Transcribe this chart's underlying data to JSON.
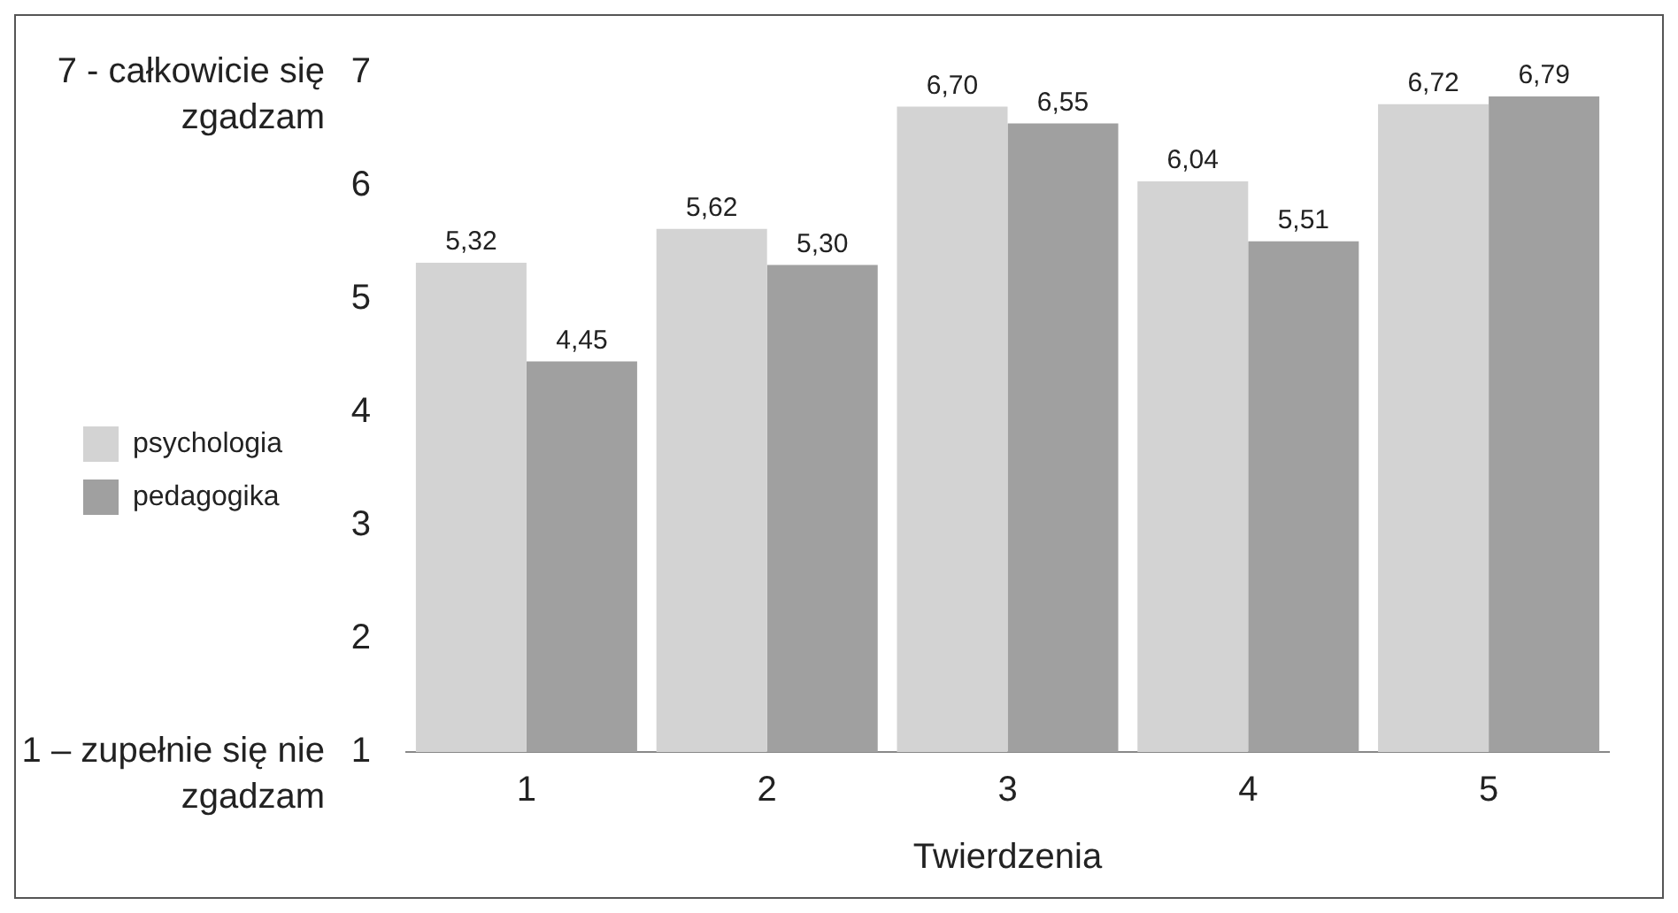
{
  "chart_data": {
    "type": "bar",
    "xlabel": "Twierdzenia",
    "categories": [
      "1",
      "2",
      "3",
      "4",
      "5"
    ],
    "series": [
      {
        "name": "psychologia",
        "color": "#d3d3d3",
        "values": [
          5.32,
          5.62,
          6.7,
          6.04,
          6.72
        ],
        "value_labels": [
          "5,32",
          "5,62",
          "6,70",
          "6,04",
          "6,72"
        ]
      },
      {
        "name": "pedagogika",
        "color": "#a0a0a0",
        "values": [
          4.45,
          5.3,
          6.55,
          5.51,
          6.79
        ],
        "value_labels": [
          "4,45",
          "5,30",
          "6,55",
          "5,51",
          "6,79"
        ]
      }
    ],
    "ylim": [
      1,
      7
    ],
    "yticks": [
      1,
      2,
      3,
      4,
      5,
      6,
      7
    ],
    "grid": false,
    "legend": "left",
    "annotations": [
      "7 - całkowicie się zgadzam",
      "1 – zupełnie się nie zgadzam"
    ]
  }
}
